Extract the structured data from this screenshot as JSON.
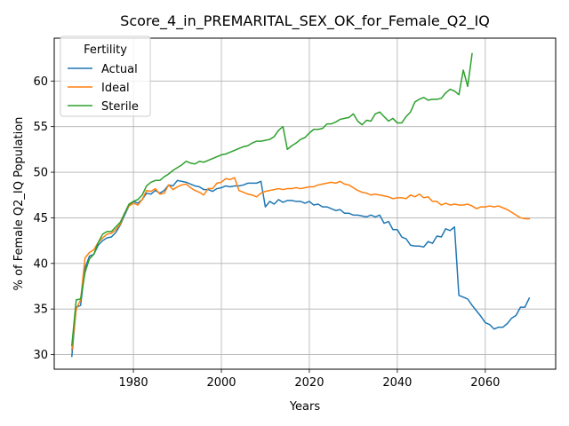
{
  "chart_data": {
    "type": "line",
    "title": "Score_4_in_PREMARITAL_SEX_OK_for_Female_Q2_IQ",
    "xlabel": "Years",
    "ylabel": "% of Female Q2_IQ Population",
    "xlim": [
      1962,
      2076
    ],
    "ylim": [
      28.4,
      64.7
    ],
    "xticks": [
      1980,
      2000,
      2020,
      2040,
      2060
    ],
    "yticks": [
      30,
      35,
      40,
      45,
      50,
      55,
      60
    ],
    "grid": true,
    "legend": {
      "title": "Fertility",
      "position": "top-left"
    },
    "series": [
      {
        "name": "Actual",
        "color": "#1f77b4",
        "points": [
          [
            1966,
            29.8
          ],
          [
            1967,
            35.2
          ],
          [
            1968,
            35.4
          ],
          [
            1969,
            39.5
          ],
          [
            1970,
            40.8
          ],
          [
            1971,
            41.0
          ],
          [
            1972,
            42.0
          ],
          [
            1973,
            42.5
          ],
          [
            1974,
            42.8
          ],
          [
            1975,
            42.9
          ],
          [
            1976,
            43.4
          ],
          [
            1977,
            44.2
          ],
          [
            1978,
            45.3
          ],
          [
            1979,
            46.3
          ],
          [
            1980,
            46.8
          ],
          [
            1981,
            46.6
          ],
          [
            1982,
            47.0
          ],
          [
            1983,
            47.7
          ],
          [
            1984,
            47.6
          ],
          [
            1985,
            48.0
          ],
          [
            1986,
            47.7
          ],
          [
            1987,
            48.0
          ],
          [
            1988,
            48.6
          ],
          [
            1989,
            48.5
          ],
          [
            1990,
            49.1
          ],
          [
            1991,
            49.0
          ],
          [
            1992,
            48.9
          ],
          [
            1993,
            48.7
          ],
          [
            1994,
            48.5
          ],
          [
            1995,
            48.4
          ],
          [
            1996,
            48.1
          ],
          [
            1997,
            48.1
          ],
          [
            1998,
            47.9
          ],
          [
            1999,
            48.2
          ],
          [
            2000,
            48.3
          ],
          [
            2001,
            48.5
          ],
          [
            2002,
            48.4
          ],
          [
            2003,
            48.5
          ],
          [
            2004,
            48.5
          ],
          [
            2005,
            48.6
          ],
          [
            2006,
            48.8
          ],
          [
            2007,
            48.8
          ],
          [
            2008,
            48.8
          ],
          [
            2009,
            49.0
          ],
          [
            2010,
            46.2
          ],
          [
            2011,
            46.8
          ],
          [
            2012,
            46.5
          ],
          [
            2013,
            47.0
          ],
          [
            2014,
            46.7
          ],
          [
            2015,
            46.9
          ],
          [
            2016,
            46.9
          ],
          [
            2017,
            46.8
          ],
          [
            2018,
            46.8
          ],
          [
            2019,
            46.6
          ],
          [
            2020,
            46.8
          ],
          [
            2021,
            46.4
          ],
          [
            2022,
            46.5
          ],
          [
            2023,
            46.2
          ],
          [
            2024,
            46.2
          ],
          [
            2025,
            46.0
          ],
          [
            2026,
            45.8
          ],
          [
            2027,
            45.9
          ],
          [
            2028,
            45.5
          ],
          [
            2029,
            45.5
          ],
          [
            2030,
            45.3
          ],
          [
            2031,
            45.3
          ],
          [
            2032,
            45.2
          ],
          [
            2033,
            45.1
          ],
          [
            2034,
            45.3
          ],
          [
            2035,
            45.1
          ],
          [
            2036,
            45.3
          ],
          [
            2037,
            44.4
          ],
          [
            2038,
            44.6
          ],
          [
            2039,
            43.7
          ],
          [
            2040,
            43.7
          ],
          [
            2041,
            42.9
          ],
          [
            2042,
            42.7
          ],
          [
            2043,
            42.0
          ],
          [
            2044,
            41.9
          ],
          [
            2045,
            41.9
          ],
          [
            2046,
            41.8
          ],
          [
            2047,
            42.4
          ],
          [
            2048,
            42.2
          ],
          [
            2049,
            43.0
          ],
          [
            2050,
            42.9
          ],
          [
            2051,
            43.8
          ],
          [
            2052,
            43.6
          ],
          [
            2053,
            44.0
          ],
          [
            2054,
            36.5
          ],
          [
            2055,
            36.3
          ],
          [
            2056,
            36.1
          ],
          [
            2057,
            35.4
          ],
          [
            2058,
            34.8
          ],
          [
            2059,
            34.2
          ],
          [
            2060,
            33.5
          ],
          [
            2061,
            33.3
          ],
          [
            2062,
            32.8
          ],
          [
            2063,
            33.0
          ],
          [
            2064,
            33.0
          ],
          [
            2065,
            33.4
          ],
          [
            2066,
            34.0
          ],
          [
            2067,
            34.3
          ],
          [
            2068,
            35.2
          ],
          [
            2069,
            35.2
          ],
          [
            2070,
            36.2
          ]
        ]
      },
      {
        "name": "Ideal",
        "color": "#ff7f0e",
        "points": [
          [
            1966,
            30.5
          ],
          [
            1967,
            35.0
          ],
          [
            1968,
            36.0
          ],
          [
            1969,
            40.6
          ],
          [
            1970,
            41.2
          ],
          [
            1971,
            41.5
          ],
          [
            1972,
            42.3
          ],
          [
            1973,
            42.8
          ],
          [
            1974,
            43.2
          ],
          [
            1975,
            43.3
          ],
          [
            1976,
            43.7
          ],
          [
            1977,
            44.3
          ],
          [
            1978,
            45.5
          ],
          [
            1979,
            46.3
          ],
          [
            1980,
            46.6
          ],
          [
            1981,
            46.4
          ],
          [
            1982,
            47.0
          ],
          [
            1983,
            48.0
          ],
          [
            1984,
            47.9
          ],
          [
            1985,
            48.2
          ],
          [
            1986,
            47.6
          ],
          [
            1987,
            47.7
          ],
          [
            1988,
            48.6
          ],
          [
            1989,
            48.1
          ],
          [
            1990,
            48.4
          ],
          [
            1991,
            48.6
          ],
          [
            1992,
            48.7
          ],
          [
            1993,
            48.3
          ],
          [
            1994,
            48.0
          ],
          [
            1995,
            47.8
          ],
          [
            1996,
            47.5
          ],
          [
            1997,
            48.2
          ],
          [
            1998,
            48.2
          ],
          [
            1999,
            48.8
          ],
          [
            2000,
            48.9
          ],
          [
            2001,
            49.3
          ],
          [
            2002,
            49.2
          ],
          [
            2003,
            49.4
          ],
          [
            2004,
            48.0
          ],
          [
            2005,
            47.8
          ],
          [
            2006,
            47.6
          ],
          [
            2007,
            47.5
          ],
          [
            2008,
            47.3
          ],
          [
            2009,
            47.7
          ],
          [
            2010,
            47.9
          ],
          [
            2011,
            48.0
          ],
          [
            2012,
            48.1
          ],
          [
            2013,
            48.2
          ],
          [
            2014,
            48.1
          ],
          [
            2015,
            48.2
          ],
          [
            2016,
            48.2
          ],
          [
            2017,
            48.3
          ],
          [
            2018,
            48.2
          ],
          [
            2019,
            48.3
          ],
          [
            2020,
            48.4
          ],
          [
            2021,
            48.4
          ],
          [
            2022,
            48.6
          ],
          [
            2023,
            48.7
          ],
          [
            2024,
            48.8
          ],
          [
            2025,
            48.9
          ],
          [
            2026,
            48.8
          ],
          [
            2027,
            49.0
          ],
          [
            2028,
            48.7
          ],
          [
            2029,
            48.6
          ],
          [
            2030,
            48.3
          ],
          [
            2031,
            48.0
          ],
          [
            2032,
            47.8
          ],
          [
            2033,
            47.7
          ],
          [
            2034,
            47.5
          ],
          [
            2035,
            47.6
          ],
          [
            2036,
            47.5
          ],
          [
            2037,
            47.4
          ],
          [
            2038,
            47.3
          ],
          [
            2039,
            47.1
          ],
          [
            2040,
            47.2
          ],
          [
            2041,
            47.2
          ],
          [
            2042,
            47.1
          ],
          [
            2043,
            47.5
          ],
          [
            2044,
            47.3
          ],
          [
            2045,
            47.6
          ],
          [
            2046,
            47.2
          ],
          [
            2047,
            47.3
          ],
          [
            2048,
            46.8
          ],
          [
            2049,
            46.8
          ],
          [
            2050,
            46.4
          ],
          [
            2051,
            46.6
          ],
          [
            2052,
            46.4
          ],
          [
            2053,
            46.5
          ],
          [
            2054,
            46.4
          ],
          [
            2055,
            46.4
          ],
          [
            2056,
            46.5
          ],
          [
            2057,
            46.3
          ],
          [
            2058,
            46.0
          ],
          [
            2059,
            46.2
          ],
          [
            2060,
            46.2
          ],
          [
            2061,
            46.3
          ],
          [
            2062,
            46.2
          ],
          [
            2063,
            46.3
          ],
          [
            2064,
            46.1
          ],
          [
            2065,
            45.9
          ],
          [
            2066,
            45.6
          ],
          [
            2067,
            45.3
          ],
          [
            2068,
            45.0
          ],
          [
            2069,
            44.9
          ],
          [
            2070,
            44.9
          ]
        ]
      },
      {
        "name": "Sterile",
        "color": "#2ca02c",
        "points": [
          [
            1966,
            31.0
          ],
          [
            1967,
            36.0
          ],
          [
            1968,
            36.1
          ],
          [
            1969,
            39.0
          ],
          [
            1970,
            40.5
          ],
          [
            1971,
            41.0
          ],
          [
            1972,
            42.3
          ],
          [
            1973,
            43.2
          ],
          [
            1974,
            43.5
          ],
          [
            1975,
            43.5
          ],
          [
            1976,
            44.0
          ],
          [
            1977,
            44.5
          ],
          [
            1978,
            45.5
          ],
          [
            1979,
            46.5
          ],
          [
            1980,
            46.8
          ],
          [
            1981,
            47.0
          ],
          [
            1982,
            47.5
          ],
          [
            1983,
            48.5
          ],
          [
            1984,
            48.9
          ],
          [
            1985,
            49.1
          ],
          [
            1986,
            49.1
          ],
          [
            1987,
            49.5
          ],
          [
            1988,
            49.8
          ],
          [
            1989,
            50.2
          ],
          [
            1990,
            50.5
          ],
          [
            1991,
            50.8
          ],
          [
            1992,
            51.2
          ],
          [
            1993,
            51.0
          ],
          [
            1994,
            50.9
          ],
          [
            1995,
            51.2
          ],
          [
            1996,
            51.1
          ],
          [
            1997,
            51.3
          ],
          [
            1998,
            51.5
          ],
          [
            1999,
            51.7
          ],
          [
            2000,
            51.9
          ],
          [
            2001,
            52.0
          ],
          [
            2002,
            52.2
          ],
          [
            2003,
            52.4
          ],
          [
            2004,
            52.6
          ],
          [
            2005,
            52.8
          ],
          [
            2006,
            52.9
          ],
          [
            2007,
            53.2
          ],
          [
            2008,
            53.4
          ],
          [
            2009,
            53.4
          ],
          [
            2010,
            53.5
          ],
          [
            2011,
            53.6
          ],
          [
            2012,
            53.9
          ],
          [
            2013,
            54.6
          ],
          [
            2014,
            55.0
          ],
          [
            2015,
            52.5
          ],
          [
            2016,
            52.9
          ],
          [
            2017,
            53.2
          ],
          [
            2018,
            53.6
          ],
          [
            2019,
            53.8
          ],
          [
            2020,
            54.3
          ],
          [
            2021,
            54.7
          ],
          [
            2022,
            54.7
          ],
          [
            2023,
            54.8
          ],
          [
            2024,
            55.3
          ],
          [
            2025,
            55.3
          ],
          [
            2026,
            55.5
          ],
          [
            2027,
            55.8
          ],
          [
            2028,
            55.9
          ],
          [
            2029,
            56.0
          ],
          [
            2030,
            56.4
          ],
          [
            2031,
            55.6
          ],
          [
            2032,
            55.2
          ],
          [
            2033,
            55.7
          ],
          [
            2034,
            55.6
          ],
          [
            2035,
            56.4
          ],
          [
            2036,
            56.6
          ],
          [
            2037,
            56.1
          ],
          [
            2038,
            55.6
          ],
          [
            2039,
            55.9
          ],
          [
            2040,
            55.4
          ],
          [
            2041,
            55.4
          ],
          [
            2042,
            56.1
          ],
          [
            2043,
            56.6
          ],
          [
            2044,
            57.7
          ],
          [
            2045,
            58.0
          ],
          [
            2046,
            58.2
          ],
          [
            2047,
            57.9
          ],
          [
            2048,
            58.0
          ],
          [
            2049,
            58.0
          ],
          [
            2050,
            58.1
          ],
          [
            2051,
            58.7
          ],
          [
            2052,
            59.1
          ],
          [
            2053,
            58.9
          ],
          [
            2054,
            58.5
          ],
          [
            2055,
            61.2
          ],
          [
            2056,
            59.4
          ],
          [
            2057,
            63.0
          ]
        ]
      }
    ]
  }
}
